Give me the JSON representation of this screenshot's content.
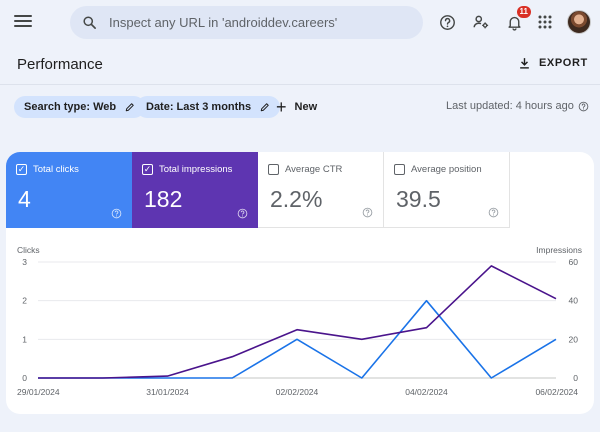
{
  "header": {
    "search_placeholder": "Inspect any URL in 'androiddev.careers'",
    "notification_count": "11",
    "icons": [
      "menu-icon",
      "search-icon",
      "help-icon",
      "manage-users-icon",
      "notifications-icon",
      "apps-grid-icon",
      "avatar"
    ]
  },
  "page": {
    "title": "Performance",
    "export_label": "EXPORT"
  },
  "filters": {
    "search_type": "Search type: Web",
    "date": "Date: Last 3 months",
    "new_label": "New",
    "last_updated": "Last updated: 4 hours ago"
  },
  "metrics": [
    {
      "label": "Total clicks",
      "value": "4",
      "checked": true,
      "color": "#4285f4"
    },
    {
      "label": "Total impressions",
      "value": "182",
      "checked": true,
      "color": "#5e35b1"
    },
    {
      "label": "Average CTR",
      "value": "2.2%",
      "checked": false,
      "color": "#ffffff"
    },
    {
      "label": "Average position",
      "value": "39.5",
      "checked": false,
      "color": "#ffffff"
    }
  ],
  "chart_data": {
    "type": "line",
    "left_axis_label": "Clicks",
    "right_axis_label": "Impressions",
    "left_ylim": [
      0,
      3
    ],
    "right_ylim": [
      0,
      60
    ],
    "left_ticks": [
      "0",
      "1",
      "2",
      "3"
    ],
    "right_ticks": [
      "0",
      "20",
      "40",
      "60"
    ],
    "x": [
      "29/01/2024",
      "30/01/2024",
      "31/01/2024",
      "01/02/2024",
      "02/02/2024",
      "03/02/2024",
      "04/02/2024",
      "05/02/2024",
      "06/02/2024"
    ],
    "x_tick_labels": [
      "29/01/2024",
      "31/01/2024",
      "02/02/2024",
      "04/02/2024",
      "06/02/2024"
    ],
    "series": [
      {
        "name": "Clicks",
        "axis": "left",
        "color": "#1a73e8",
        "values": [
          0,
          0,
          0,
          0,
          1,
          0,
          2,
          0,
          1
        ]
      },
      {
        "name": "Impressions",
        "axis": "right",
        "color": "#4a148c",
        "values": [
          0,
          0,
          1,
          11,
          25,
          20,
          26,
          58,
          41
        ]
      }
    ],
    "grid": true
  }
}
